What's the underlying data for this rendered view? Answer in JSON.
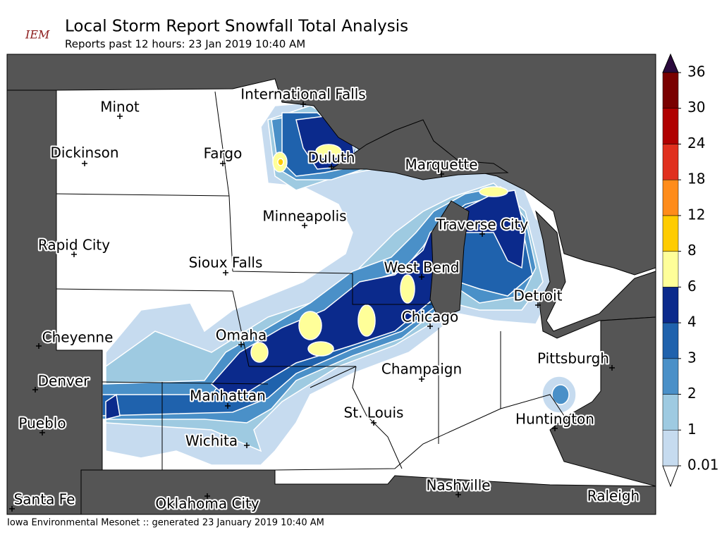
{
  "header": {
    "logo": "IEM",
    "title": "Local Storm Report Snowfall Total Analysis",
    "subtitle": "Reports past 12 hours: 23 Jan 2019 10:40 AM"
  },
  "cities": [
    "Minot",
    "Dickinson",
    "Fargo",
    "International Falls",
    "Duluth",
    "Marquette",
    "Minneapolis",
    "Traverse City",
    "Rapid City",
    "Sioux Falls",
    "West Bend",
    "Detroit",
    "Chicago",
    "Cheyenne",
    "Omaha",
    "Pittsburgh",
    "Champaign",
    "Denver",
    "Manhattan",
    "St. Louis",
    "Huntington",
    "Pueblo",
    "Wichita",
    "Nashville",
    "Raleigh",
    "Santa Fe",
    "Oklahoma City"
  ],
  "colorbar": {
    "levels": [
      0.01,
      1,
      2,
      3,
      4,
      6,
      8,
      12,
      18,
      24,
      30,
      36
    ],
    "colors": [
      "#c6dbef",
      "#9ecae1",
      "#4a90c8",
      "#1f62ad",
      "#0b2a8c",
      "#ffff99",
      "#ffcc00",
      "#ff8c1a",
      "#e0301e",
      "#b00000",
      "#7a0000"
    ],
    "under_color": "#ffffff",
    "over_color": "#2b0a3d"
  },
  "footer": "Iowa Environmental Mesonet :: generated 23 January 2019 10:40 AM"
}
